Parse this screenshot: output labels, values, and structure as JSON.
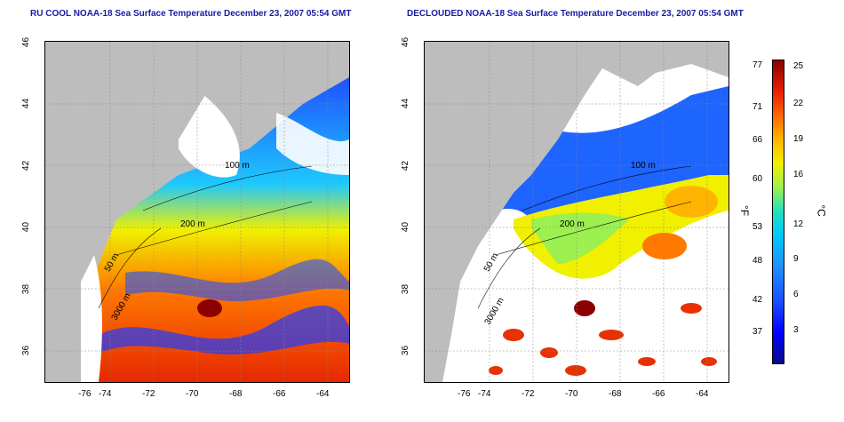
{
  "titles": {
    "left": "RU COOL NOAA-18 Sea Surface Temperature December 23, 2007 05:54 GMT",
    "right": "DECLOUDED NOAA-18 Sea Surface Temperature December 23, 2007 05:54 GMT"
  },
  "axes": {
    "x_ticks": [
      "-76",
      "-74",
      "-72",
      "-70",
      "-68",
      "-66",
      "-64"
    ],
    "y_ticks": [
      "46",
      "44",
      "42",
      "40",
      "38",
      "36"
    ],
    "xlim": [
      -77,
      -63
    ],
    "ylim": [
      35,
      46
    ]
  },
  "contours": {
    "left": [
      "100 m",
      "200 m",
      "50 m",
      "3000 m"
    ],
    "right": [
      "100 m",
      "200 m",
      "50 m",
      "3000 m"
    ]
  },
  "colorbar": {
    "fahrenheit_ticks": [
      "77",
      "71",
      "66",
      "60",
      "53",
      "48",
      "42",
      "37"
    ],
    "celsius_ticks": [
      "25",
      "22",
      "19",
      "16",
      "12",
      "9",
      "6",
      "3"
    ],
    "unit_f": "°F",
    "unit_c": "°C"
  },
  "colors": {
    "land": "#bdbdbd",
    "cloud_mask": "#ffffff",
    "title": "#1a1aa6"
  }
}
